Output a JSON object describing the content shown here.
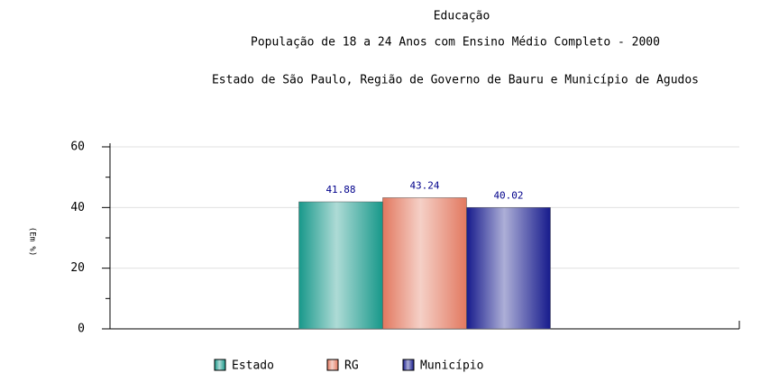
{
  "chart_data": {
    "type": "bar",
    "title": "Educação",
    "subtitle": "População de 18 a 24 Anos com Ensino Médio Completo - 2000",
    "subtitle2": "Estado de São Paulo, Região de Governo de Bauru e Município de Agudos",
    "y_label": "(Em %)",
    "categories": [
      null
    ],
    "series": [
      {
        "name": "Estado",
        "color": "#17988a",
        "values": [
          41.88
        ]
      },
      {
        "name": "RG",
        "color": "#e2785f",
        "values": [
          43.24
        ]
      },
      {
        "name": "Município",
        "color": "#161a8c",
        "values": [
          40.02
        ]
      }
    ],
    "ylim": [
      0,
      60
    ],
    "yticks": [
      0,
      20,
      40,
      60
    ],
    "minor_yticks": [
      10,
      30,
      50
    ],
    "grid": true,
    "legend": "bottom"
  }
}
